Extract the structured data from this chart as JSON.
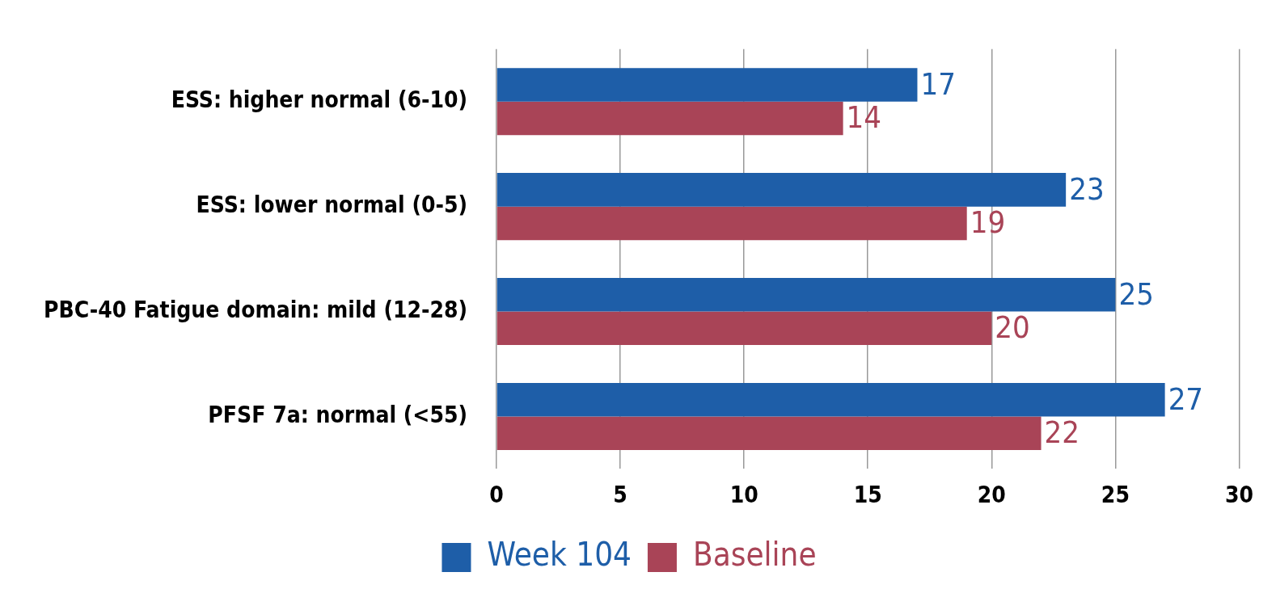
{
  "chart_data": {
    "type": "bar",
    "orientation": "horizontal",
    "categories": [
      "ESS: higher normal (6-10)",
      "ESS: lower normal (0-5)",
      "PBC-40 Fatigue domain: mild (12-28)",
      "PFSF 7a: normal (<55)"
    ],
    "series": [
      {
        "name": "Week 104",
        "color": "#1e5ea8",
        "values": [
          17,
          23,
          25,
          27
        ]
      },
      {
        "name": "Baseline",
        "color": "#a94457",
        "values": [
          14,
          19,
          20,
          22
        ]
      }
    ],
    "xlim": [
      0,
      30
    ],
    "xticks": [
      0,
      5,
      10,
      15,
      20,
      25,
      30
    ],
    "grid": "x",
    "legend": "bottom",
    "data_labels": true
  }
}
